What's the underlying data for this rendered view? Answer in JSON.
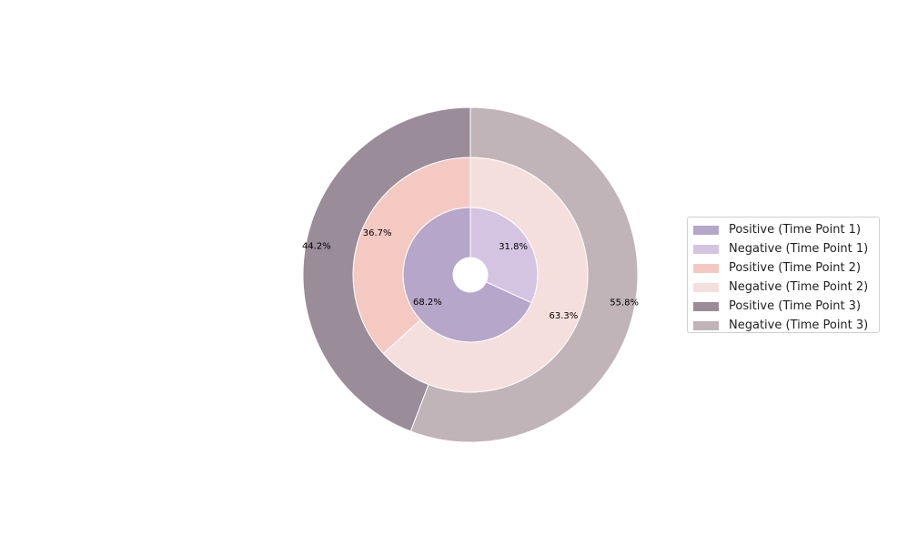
{
  "chart_data": {
    "type": "pie",
    "variant": "nested-donut",
    "rings": [
      {
        "time_point": "Time Point 1",
        "slices": [
          {
            "name": "Positive (Time Point 1)",
            "value": 68.2,
            "label": "68.2%",
            "color": "#b6a6c9"
          },
          {
            "name": "Negative (Time Point 1)",
            "value": 31.8,
            "label": "31.8%",
            "color": "#d4c4e2"
          }
        ]
      },
      {
        "time_point": "Time Point 2",
        "slices": [
          {
            "name": "Positive (Time Point 2)",
            "value": 36.7,
            "label": "36.7%",
            "color": "#f4c9c2"
          },
          {
            "name": "Negative (Time Point 2)",
            "value": 63.3,
            "label": "63.3%",
            "color": "#f5dfdc"
          }
        ]
      },
      {
        "time_point": "Time Point 3",
        "slices": [
          {
            "name": "Positive (Time Point 3)",
            "value": 44.2,
            "label": "44.2%",
            "color": "#9a8c98"
          },
          {
            "name": "Negative (Time Point 3)",
            "value": 55.8,
            "label": "55.8%",
            "color": "#c0b4b8"
          }
        ]
      }
    ],
    "legend_placement": "right"
  },
  "legend": {
    "items": [
      {
        "label": "Positive (Time Point 1)",
        "color": "#b6a6c9"
      },
      {
        "label": "Negative (Time Point 1)",
        "color": "#d4c4e2"
      },
      {
        "label": "Positive (Time Point 2)",
        "color": "#f4c9c2"
      },
      {
        "label": "Negative (Time Point 2)",
        "color": "#f5dfdc"
      },
      {
        "label": "Positive (Time Point 3)",
        "color": "#9a8c98"
      },
      {
        "label": "Negative (Time Point 3)",
        "color": "#c0b4b8"
      }
    ]
  }
}
